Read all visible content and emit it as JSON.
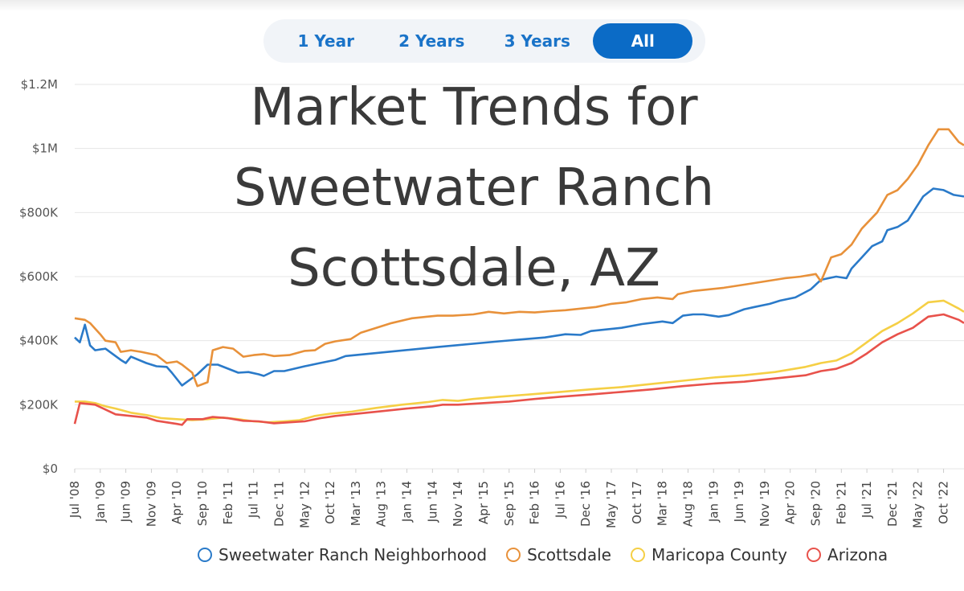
{
  "range_tabs": [
    {
      "label": "1 Year",
      "active": false
    },
    {
      "label": "2 Years",
      "active": false
    },
    {
      "label": "3 Years",
      "active": false
    },
    {
      "label": "All",
      "active": true
    }
  ],
  "chart_data": {
    "type": "line",
    "title_lines": [
      "Market Trends for",
      "Sweetwater Ranch",
      "Scottsdale, AZ"
    ],
    "y_ticks": [
      {
        "value": 0,
        "label": "$0"
      },
      {
        "value": 200000,
        "label": "$200K"
      },
      {
        "value": 400000,
        "label": "$400K"
      },
      {
        "value": 600000,
        "label": "$600K"
      },
      {
        "value": 800000,
        "label": "$800K"
      },
      {
        "value": 1000000,
        "label": "$1M"
      },
      {
        "value": 1200000,
        "label": "$1.2M"
      }
    ],
    "ylim": [
      0,
      1200000
    ],
    "x_start": "2008-07",
    "x_end": "2023-01",
    "x_tick_labels": [
      "Jul '08",
      "Jan '09",
      "Jun '09",
      "Nov '09",
      "Apr '10",
      "Sep '10",
      "Feb '11",
      "Jul '11",
      "Dec '11",
      "May '12",
      "Oct '12",
      "Mar '13",
      "Aug '13",
      "Jan '14",
      "Jun '14",
      "Nov '14",
      "Apr '15",
      "Sep '15",
      "Feb '16",
      "Jul '16",
      "Dec '16",
      "May '17",
      "Oct '17",
      "Mar '18",
      "Aug '18",
      "Jan '19",
      "Jun '19",
      "Nov '19",
      "Apr '20",
      "Sep '20",
      "Feb '21",
      "Jul '21",
      "Dec '21",
      "May '22",
      "Oct '22"
    ],
    "grid": true,
    "legend_position": "bottom",
    "series": [
      {
        "name": "Sweetwater Ranch Neighborhood",
        "color": "#2a7ac9",
        "points": [
          [
            "2008-07",
            410000
          ],
          [
            "2008-08",
            395000
          ],
          [
            "2008-09",
            450000
          ],
          [
            "2008-10",
            385000
          ],
          [
            "2008-11",
            370000
          ],
          [
            "2009-01",
            375000
          ],
          [
            "2009-04",
            340000
          ],
          [
            "2009-05",
            330000
          ],
          [
            "2009-06",
            350000
          ],
          [
            "2009-09",
            330000
          ],
          [
            "2009-11",
            320000
          ],
          [
            "2010-01",
            318000
          ],
          [
            "2010-02",
            300000
          ],
          [
            "2010-04",
            260000
          ],
          [
            "2010-07",
            295000
          ],
          [
            "2010-09",
            325000
          ],
          [
            "2010-11",
            325000
          ],
          [
            "2011-03",
            300000
          ],
          [
            "2011-05",
            302000
          ],
          [
            "2011-07",
            295000
          ],
          [
            "2011-08",
            290000
          ],
          [
            "2011-10",
            305000
          ],
          [
            "2011-12",
            305000
          ],
          [
            "2012-04",
            320000
          ],
          [
            "2012-07",
            330000
          ],
          [
            "2012-10",
            340000
          ],
          [
            "2012-12",
            352000
          ],
          [
            "2014-06",
            380000
          ],
          [
            "2015-06",
            398000
          ],
          [
            "2016-03",
            410000
          ],
          [
            "2016-07",
            420000
          ],
          [
            "2016-10",
            418000
          ],
          [
            "2016-12",
            430000
          ],
          [
            "2017-06",
            440000
          ],
          [
            "2017-10",
            452000
          ],
          [
            "2018-02",
            460000
          ],
          [
            "2018-04",
            455000
          ],
          [
            "2018-06",
            478000
          ],
          [
            "2018-08",
            482000
          ],
          [
            "2018-10",
            482000
          ],
          [
            "2019-01",
            475000
          ],
          [
            "2019-03",
            480000
          ],
          [
            "2019-06",
            498000
          ],
          [
            "2019-08",
            505000
          ],
          [
            "2019-11",
            515000
          ],
          [
            "2020-01",
            525000
          ],
          [
            "2020-04",
            535000
          ],
          [
            "2020-07",
            560000
          ],
          [
            "2020-09",
            590000
          ],
          [
            "2020-12",
            600000
          ],
          [
            "2021-02",
            595000
          ],
          [
            "2021-03",
            625000
          ],
          [
            "2021-05",
            660000
          ],
          [
            "2021-07",
            695000
          ],
          [
            "2021-09",
            710000
          ],
          [
            "2021-10",
            745000
          ],
          [
            "2021-12",
            755000
          ],
          [
            "2022-02",
            775000
          ],
          [
            "2022-03",
            800000
          ],
          [
            "2022-05",
            850000
          ],
          [
            "2022-07",
            875000
          ],
          [
            "2022-09",
            870000
          ],
          [
            "2022-11",
            855000
          ],
          [
            "2023-01",
            850000
          ]
        ]
      },
      {
        "name": "Scottsdale",
        "color": "#e8913a",
        "points": [
          [
            "2008-07",
            470000
          ],
          [
            "2008-09",
            465000
          ],
          [
            "2008-10",
            455000
          ],
          [
            "2008-12",
            420000
          ],
          [
            "2009-01",
            400000
          ],
          [
            "2009-03",
            395000
          ],
          [
            "2009-04",
            365000
          ],
          [
            "2009-06",
            370000
          ],
          [
            "2009-08",
            365000
          ],
          [
            "2009-11",
            355000
          ],
          [
            "2010-01",
            330000
          ],
          [
            "2010-03",
            335000
          ],
          [
            "2010-04",
            325000
          ],
          [
            "2010-06",
            300000
          ],
          [
            "2010-07",
            258000
          ],
          [
            "2010-09",
            270000
          ],
          [
            "2010-10",
            370000
          ],
          [
            "2010-12",
            380000
          ],
          [
            "2011-02",
            375000
          ],
          [
            "2011-04",
            350000
          ],
          [
            "2011-06",
            355000
          ],
          [
            "2011-08",
            358000
          ],
          [
            "2011-10",
            352000
          ],
          [
            "2012-01",
            355000
          ],
          [
            "2012-04",
            368000
          ],
          [
            "2012-06",
            370000
          ],
          [
            "2012-08",
            390000
          ],
          [
            "2012-10",
            398000
          ],
          [
            "2013-01",
            405000
          ],
          [
            "2013-03",
            425000
          ],
          [
            "2013-06",
            440000
          ],
          [
            "2013-09",
            455000
          ],
          [
            "2014-01",
            470000
          ],
          [
            "2014-04",
            475000
          ],
          [
            "2014-06",
            478000
          ],
          [
            "2014-09",
            478000
          ],
          [
            "2015-01",
            482000
          ],
          [
            "2015-04",
            490000
          ],
          [
            "2015-07",
            485000
          ],
          [
            "2015-10",
            490000
          ],
          [
            "2016-01",
            488000
          ],
          [
            "2016-04",
            492000
          ],
          [
            "2016-07",
            495000
          ],
          [
            "2016-10",
            500000
          ],
          [
            "2017-01",
            505000
          ],
          [
            "2017-04",
            515000
          ],
          [
            "2017-07",
            520000
          ],
          [
            "2017-10",
            530000
          ],
          [
            "2018-01",
            535000
          ],
          [
            "2018-04",
            530000
          ],
          [
            "2018-05",
            545000
          ],
          [
            "2018-08",
            555000
          ],
          [
            "2018-11",
            560000
          ],
          [
            "2019-02",
            565000
          ],
          [
            "2019-06",
            575000
          ],
          [
            "2019-10",
            585000
          ],
          [
            "2020-02",
            595000
          ],
          [
            "2020-05",
            600000
          ],
          [
            "2020-08",
            608000
          ],
          [
            "2020-09",
            585000
          ],
          [
            "2020-11",
            660000
          ],
          [
            "2021-01",
            670000
          ],
          [
            "2021-03",
            700000
          ],
          [
            "2021-05",
            750000
          ],
          [
            "2021-08",
            800000
          ],
          [
            "2021-10",
            855000
          ],
          [
            "2021-12",
            870000
          ],
          [
            "2022-02",
            905000
          ],
          [
            "2022-04",
            950000
          ],
          [
            "2022-06",
            1010000
          ],
          [
            "2022-08",
            1060000
          ],
          [
            "2022-10",
            1060000
          ],
          [
            "2022-12",
            1020000
          ],
          [
            "2023-01",
            1010000
          ]
        ]
      },
      {
        "name": "Maricopa County",
        "color": "#f5cf45",
        "points": [
          [
            "2008-07",
            210000
          ],
          [
            "2008-09",
            210000
          ],
          [
            "2008-11",
            205000
          ],
          [
            "2009-01",
            195000
          ],
          [
            "2009-03",
            188000
          ],
          [
            "2009-06",
            175000
          ],
          [
            "2009-09",
            168000
          ],
          [
            "2009-12",
            158000
          ],
          [
            "2010-03",
            155000
          ],
          [
            "2010-06",
            152000
          ],
          [
            "2010-09",
            155000
          ],
          [
            "2010-12",
            160000
          ],
          [
            "2011-03",
            155000
          ],
          [
            "2011-06",
            148000
          ],
          [
            "2011-09",
            145000
          ],
          [
            "2011-12",
            148000
          ],
          [
            "2012-03",
            152000
          ],
          [
            "2012-06",
            165000
          ],
          [
            "2012-09",
            172000
          ],
          [
            "2013-01",
            178000
          ],
          [
            "2013-06",
            190000
          ],
          [
            "2013-11",
            200000
          ],
          [
            "2014-04",
            208000
          ],
          [
            "2014-07",
            215000
          ],
          [
            "2014-10",
            212000
          ],
          [
            "2015-01",
            218000
          ],
          [
            "2015-06",
            225000
          ],
          [
            "2015-12",
            232000
          ],
          [
            "2016-06",
            240000
          ],
          [
            "2016-12",
            248000
          ],
          [
            "2017-06",
            255000
          ],
          [
            "2017-12",
            265000
          ],
          [
            "2018-06",
            275000
          ],
          [
            "2018-12",
            285000
          ],
          [
            "2019-06",
            292000
          ],
          [
            "2019-12",
            302000
          ],
          [
            "2020-06",
            318000
          ],
          [
            "2020-09",
            330000
          ],
          [
            "2020-12",
            338000
          ],
          [
            "2021-03",
            360000
          ],
          [
            "2021-06",
            395000
          ],
          [
            "2021-09",
            430000
          ],
          [
            "2021-12",
            455000
          ],
          [
            "2022-03",
            485000
          ],
          [
            "2022-06",
            520000
          ],
          [
            "2022-09",
            525000
          ],
          [
            "2022-12",
            500000
          ],
          [
            "2023-01",
            490000
          ]
        ]
      },
      {
        "name": "Arizona",
        "color": "#e8524b",
        "points": [
          [
            "2008-07",
            140000
          ],
          [
            "2008-08",
            205000
          ],
          [
            "2008-11",
            200000
          ],
          [
            "2009-01",
            185000
          ],
          [
            "2009-03",
            170000
          ],
          [
            "2009-06",
            165000
          ],
          [
            "2009-09",
            160000
          ],
          [
            "2009-11",
            150000
          ],
          [
            "2010-03",
            140000
          ],
          [
            "2010-04",
            137000
          ],
          [
            "2010-05",
            155000
          ],
          [
            "2010-08",
            155000
          ],
          [
            "2010-10",
            162000
          ],
          [
            "2011-01",
            158000
          ],
          [
            "2011-04",
            150000
          ],
          [
            "2011-07",
            148000
          ],
          [
            "2011-10",
            142000
          ],
          [
            "2012-01",
            145000
          ],
          [
            "2012-04",
            148000
          ],
          [
            "2012-07",
            158000
          ],
          [
            "2012-10",
            165000
          ],
          [
            "2013-01",
            170000
          ],
          [
            "2013-06",
            178000
          ],
          [
            "2013-12",
            188000
          ],
          [
            "2014-05",
            195000
          ],
          [
            "2014-07",
            200000
          ],
          [
            "2014-10",
            200000
          ],
          [
            "2015-03",
            205000
          ],
          [
            "2015-08",
            210000
          ],
          [
            "2016-01",
            218000
          ],
          [
            "2016-06",
            225000
          ],
          [
            "2016-12",
            232000
          ],
          [
            "2017-06",
            240000
          ],
          [
            "2017-12",
            248000
          ],
          [
            "2018-06",
            258000
          ],
          [
            "2018-12",
            266000
          ],
          [
            "2019-06",
            272000
          ],
          [
            "2019-12",
            282000
          ],
          [
            "2020-06",
            292000
          ],
          [
            "2020-09",
            305000
          ],
          [
            "2020-12",
            312000
          ],
          [
            "2021-03",
            330000
          ],
          [
            "2021-06",
            360000
          ],
          [
            "2021-09",
            395000
          ],
          [
            "2021-12",
            420000
          ],
          [
            "2022-03",
            440000
          ],
          [
            "2022-06",
            475000
          ],
          [
            "2022-09",
            482000
          ],
          [
            "2022-12",
            465000
          ],
          [
            "2023-01",
            455000
          ]
        ]
      }
    ]
  }
}
